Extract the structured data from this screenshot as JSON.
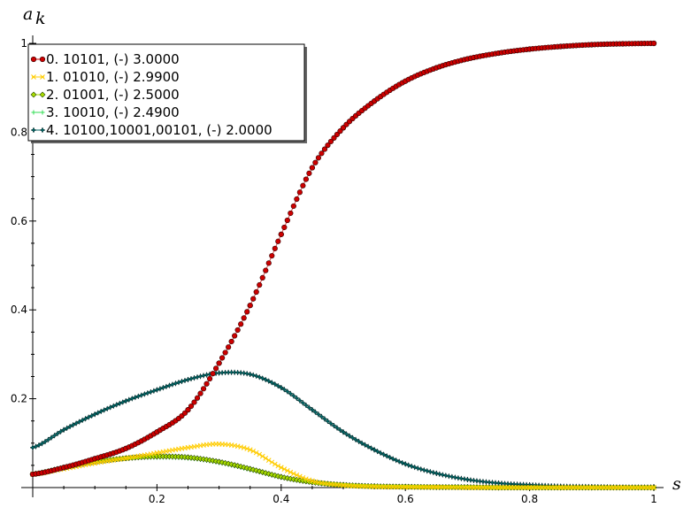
{
  "chart_data": {
    "type": "scatter",
    "title": "",
    "xlabel": "s",
    "ylabel": "a",
    "ylabel_subscript": "k",
    "xlim": [
      0,
      1
    ],
    "ylim": [
      0,
      1
    ],
    "xticks": [
      {
        "value": 0.2,
        "label": "0.2"
      },
      {
        "value": 0.4,
        "label": "0.4"
      },
      {
        "value": 0.6,
        "label": "0.6"
      },
      {
        "value": 0.8,
        "label": "0.8"
      },
      {
        "value": 1.0,
        "label": "1"
      }
    ],
    "yticks": [
      {
        "value": 0.2,
        "label": "0.2"
      },
      {
        "value": 0.4,
        "label": "0.4"
      },
      {
        "value": 0.6,
        "label": "0.6"
      },
      {
        "value": 0.8,
        "label": "0.8"
      },
      {
        "value": 1.0,
        "label": "1"
      }
    ],
    "grid": false,
    "legend_position": "top-left",
    "series": [
      {
        "name": "0. 10101, (-) 3.0000",
        "color": "#cc0000",
        "marker": "circle",
        "x": [
          0,
          0.05,
          0.1,
          0.15,
          0.2,
          0.25,
          0.3,
          0.35,
          0.4,
          0.45,
          0.5,
          0.55,
          0.6,
          0.65,
          0.7,
          0.75,
          0.8,
          0.85,
          0.9,
          0.95,
          1.0
        ],
        "y": [
          0.03,
          0.045,
          0.065,
          0.088,
          0.125,
          0.175,
          0.28,
          0.41,
          0.57,
          0.72,
          0.81,
          0.87,
          0.915,
          0.945,
          0.965,
          0.978,
          0.987,
          0.993,
          0.997,
          0.999,
          1.0
        ]
      },
      {
        "name": "1. 01010, (-) 2.9900",
        "color": "#ffcc00",
        "marker": "x",
        "x": [
          0,
          0.05,
          0.1,
          0.15,
          0.2,
          0.25,
          0.3,
          0.35,
          0.4,
          0.45,
          0.5,
          0.55,
          0.6,
          0.65,
          0.7,
          0.75,
          0.8,
          0.85,
          0.9,
          0.95,
          1.0
        ],
        "y": [
          0.03,
          0.042,
          0.055,
          0.066,
          0.078,
          0.09,
          0.098,
          0.085,
          0.045,
          0.015,
          0.005,
          0.002,
          0.001,
          0.001,
          0.0,
          0.0,
          0.0,
          0.0,
          0.0,
          0.0,
          0.0
        ]
      },
      {
        "name": "2. 01001, (-) 2.5000",
        "color": "#aadd00",
        "marker": "diamond",
        "x": [
          0,
          0.05,
          0.1,
          0.15,
          0.2,
          0.25,
          0.3,
          0.35,
          0.4,
          0.45,
          0.5,
          0.55,
          0.6,
          0.65,
          0.7,
          0.75,
          0.8,
          0.85,
          0.9,
          0.95,
          1.0
        ],
        "y": [
          0.03,
          0.045,
          0.058,
          0.066,
          0.07,
          0.068,
          0.058,
          0.042,
          0.024,
          0.012,
          0.006,
          0.003,
          0.002,
          0.001,
          0.001,
          0.0,
          0.0,
          0.0,
          0.0,
          0.0,
          0.0
        ]
      },
      {
        "name": "3. 10010, (-) 2.4900",
        "color": "#33dd55",
        "marker": "plus",
        "x": [
          0,
          0.05,
          0.1,
          0.15,
          0.2,
          0.25,
          0.3,
          0.35,
          0.4,
          0.45,
          0.5,
          0.55,
          0.6,
          0.65,
          0.7,
          0.75,
          0.8,
          0.85,
          0.9,
          0.95,
          1.0
        ],
        "y": [
          0.032,
          0.046,
          0.059,
          0.066,
          0.068,
          0.066,
          0.056,
          0.04,
          0.023,
          0.011,
          0.005,
          0.003,
          0.002,
          0.001,
          0.001,
          0.0,
          0.0,
          0.0,
          0.0,
          0.0,
          0.0
        ]
      },
      {
        "name": "4. 10100,10001,00101, (-) 2.0000",
        "color": "#006666",
        "marker": "star",
        "x": [
          0,
          0.05,
          0.1,
          0.15,
          0.2,
          0.25,
          0.3,
          0.35,
          0.4,
          0.45,
          0.5,
          0.55,
          0.6,
          0.65,
          0.7,
          0.75,
          0.8,
          0.85,
          0.9,
          0.95,
          1.0
        ],
        "y": [
          0.09,
          0.13,
          0.165,
          0.195,
          0.22,
          0.243,
          0.258,
          0.255,
          0.225,
          0.175,
          0.125,
          0.085,
          0.053,
          0.032,
          0.018,
          0.01,
          0.006,
          0.003,
          0.002,
          0.001,
          0.001
        ]
      }
    ]
  }
}
